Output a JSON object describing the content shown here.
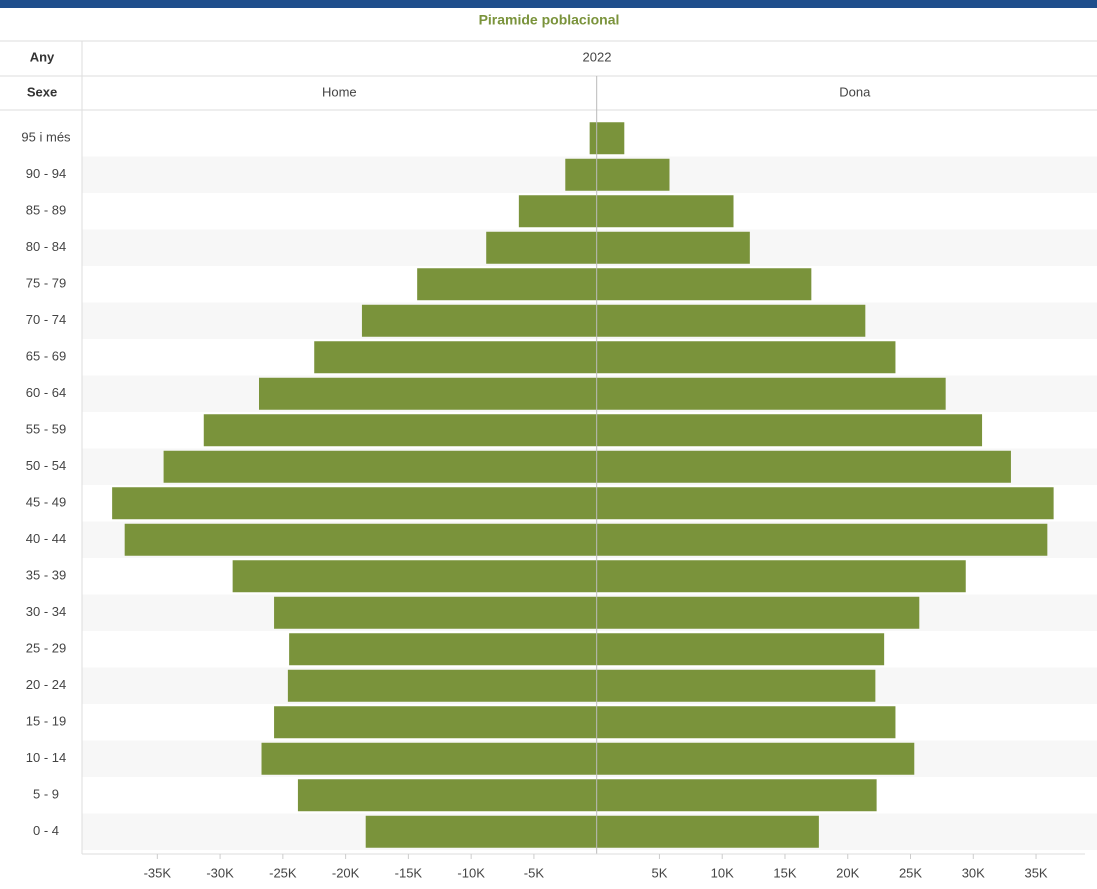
{
  "chart_data": {
    "type": "pyramid",
    "title": "Piramide poblacional",
    "year_label": "Any",
    "year": "2022",
    "series_label": "Sexe",
    "categories": [
      "95 i més",
      "90 - 94",
      "85 - 89",
      "80 - 84",
      "75 - 79",
      "70 - 74",
      "65 - 69",
      "60 - 64",
      "55 - 59",
      "50 - 54",
      "45 - 49",
      "40 - 44",
      "35 - 39",
      "30 - 34",
      "25 - 29",
      "20 - 24",
      "15 - 19",
      "10 - 14",
      "5 - 9",
      "0 - 4"
    ],
    "series": [
      {
        "name": "Home",
        "color": "#7a933b",
        "values": [
          -560,
          -2500,
          -6200,
          -8800,
          -14300,
          -18700,
          -22500,
          -26900,
          -31300,
          -34500,
          -38600,
          -37600,
          -29000,
          -25700,
          -24500,
          -24600,
          -25700,
          -26700,
          -23800,
          -18400
        ]
      },
      {
        "name": "Dona",
        "color": "#7a933b",
        "values": [
          2200,
          5800,
          10900,
          12200,
          17100,
          21400,
          23800,
          27800,
          30700,
          33000,
          36400,
          35900,
          29400,
          25700,
          22900,
          22200,
          23800,
          25300,
          22300,
          17700
        ]
      }
    ],
    "xlim": [
      -41000,
      38900
    ],
    "xticks": [
      {
        "value": -35000,
        "label": "-35K"
      },
      {
        "value": -30000,
        "label": "-30K"
      },
      {
        "value": -25000,
        "label": "-25K"
      },
      {
        "value": -20000,
        "label": "-20K"
      },
      {
        "value": -15000,
        "label": "-15K"
      },
      {
        "value": -10000,
        "label": "-10K"
      },
      {
        "value": -5000,
        "label": "-5K"
      },
      {
        "value": 5000,
        "label": "5K"
      },
      {
        "value": 10000,
        "label": "10K"
      },
      {
        "value": 15000,
        "label": "15K"
      },
      {
        "value": 20000,
        "label": "20K"
      },
      {
        "value": 25000,
        "label": "25K"
      },
      {
        "value": 30000,
        "label": "30K"
      },
      {
        "value": 35000,
        "label": "35K"
      }
    ]
  }
}
